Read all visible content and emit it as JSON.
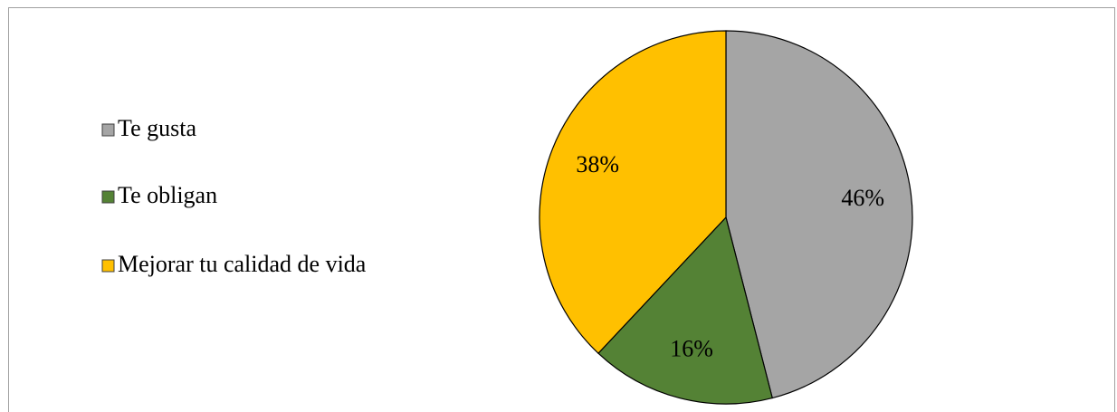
{
  "chart_data": {
    "type": "pie",
    "categories": [
      "Te gusta",
      "Te obligan",
      "Mejorar tu calidad de vida"
    ],
    "values": [
      46,
      16,
      38
    ],
    "value_labels": [
      "46%",
      "16%",
      "38%"
    ],
    "colors": [
      "#a5a5a5",
      "#548235",
      "#ffc000"
    ],
    "legend": "left"
  }
}
